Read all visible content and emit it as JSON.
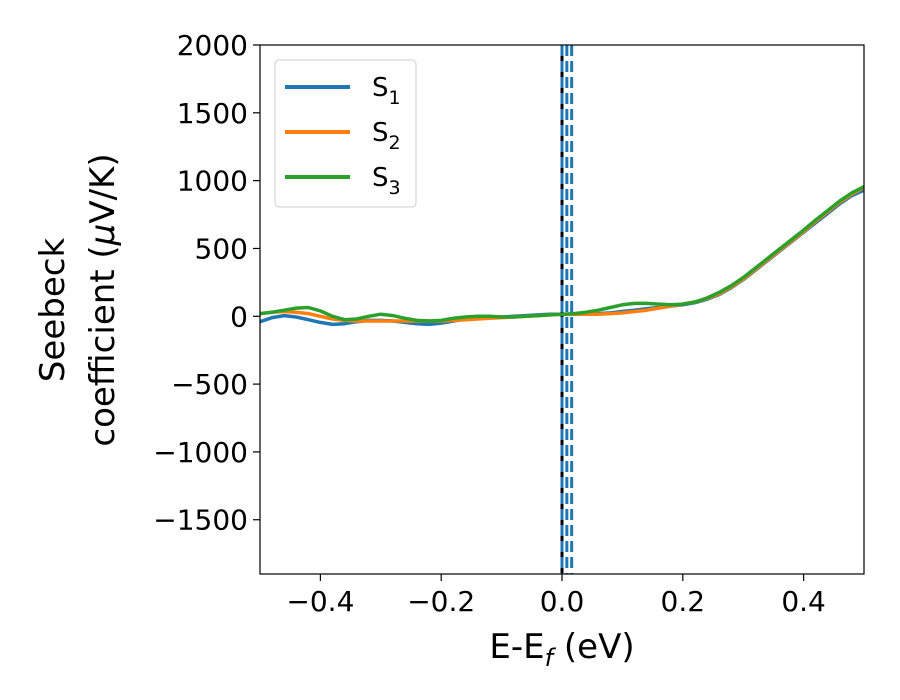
{
  "chart_data": {
    "type": "line",
    "xlabel": "E-E_f (eV)",
    "xlabel_main": "E-E",
    "xlabel_sub": "f",
    "xlabel_tail": " (eV)",
    "ylabel_line1": "Seebeck",
    "ylabel_line2_prefix": "coefficient  (",
    "ylabel_mu": "μ",
    "ylabel_line2_suffix": "V/K)",
    "xlim": [
      -0.5,
      0.5
    ],
    "ylim": [
      -1900,
      2000
    ],
    "xticks": [
      -0.4,
      -0.2,
      0.0,
      0.2,
      0.4
    ],
    "xtick_labels": [
      "−0.4",
      "−0.2",
      "0.0",
      "0.2",
      "0.4"
    ],
    "yticks": [
      -1500,
      -1000,
      -500,
      0,
      500,
      1000,
      1500,
      2000
    ],
    "ytick_labels": [
      "−1500",
      "−1000",
      "−500",
      "0",
      "500",
      "1000",
      "1500",
      "2000"
    ],
    "grid": false,
    "legend_position": "top-left",
    "vertical_lines": [
      {
        "x": 0.0,
        "color": "#000000",
        "style": "solid"
      },
      {
        "x": 0.0,
        "color": "#1f77b4",
        "style": "dashed"
      },
      {
        "x": 0.008,
        "color": "#1f77b4",
        "style": "dashed"
      },
      {
        "x": 0.016,
        "color": "#1f77b4",
        "style": "dashed"
      }
    ],
    "series": [
      {
        "name": "S",
        "subscript": "1",
        "color": "#1f77b4",
        "x": [
          -0.5,
          -0.48,
          -0.46,
          -0.44,
          -0.42,
          -0.4,
          -0.38,
          -0.36,
          -0.34,
          -0.32,
          -0.3,
          -0.28,
          -0.26,
          -0.24,
          -0.22,
          -0.2,
          -0.18,
          -0.16,
          -0.14,
          -0.12,
          -0.1,
          -0.08,
          -0.06,
          -0.04,
          -0.02,
          0.0,
          0.02,
          0.04,
          0.06,
          0.08,
          0.1,
          0.12,
          0.14,
          0.16,
          0.18,
          0.2,
          0.22,
          0.24,
          0.26,
          0.28,
          0.3,
          0.32,
          0.34,
          0.36,
          0.38,
          0.4,
          0.42,
          0.44,
          0.46,
          0.48,
          0.5
        ],
        "y": [
          -40,
          -10,
          5,
          -5,
          -25,
          -45,
          -60,
          -55,
          -40,
          -30,
          -30,
          -35,
          -45,
          -55,
          -60,
          -50,
          -35,
          -20,
          -10,
          -5,
          -5,
          0,
          5,
          10,
          15,
          15,
          15,
          15,
          20,
          25,
          35,
          45,
          55,
          65,
          75,
          85,
          100,
          125,
          160,
          210,
          270,
          340,
          410,
          480,
          550,
          620,
          690,
          760,
          830,
          890,
          930
        ]
      },
      {
        "name": "S",
        "subscript": "2",
        "color": "#ff7f0e",
        "x": [
          -0.5,
          -0.48,
          -0.46,
          -0.44,
          -0.42,
          -0.4,
          -0.38,
          -0.36,
          -0.34,
          -0.32,
          -0.3,
          -0.28,
          -0.26,
          -0.24,
          -0.22,
          -0.2,
          -0.18,
          -0.16,
          -0.14,
          -0.12,
          -0.1,
          -0.08,
          -0.06,
          -0.04,
          -0.02,
          0.0,
          0.02,
          0.04,
          0.06,
          0.08,
          0.1,
          0.12,
          0.14,
          0.16,
          0.18,
          0.2,
          0.22,
          0.24,
          0.26,
          0.28,
          0.3,
          0.32,
          0.34,
          0.36,
          0.38,
          0.4,
          0.42,
          0.44,
          0.46,
          0.48,
          0.5
        ],
        "y": [
          20,
          30,
          35,
          30,
          20,
          0,
          -20,
          -30,
          -35,
          -35,
          -35,
          -35,
          -35,
          -35,
          -35,
          -35,
          -30,
          -25,
          -20,
          -15,
          -10,
          -5,
          0,
          5,
          10,
          15,
          15,
          15,
          15,
          20,
          25,
          35,
          45,
          60,
          75,
          90,
          105,
          130,
          165,
          215,
          275,
          345,
          415,
          485,
          555,
          625,
          700,
          770,
          840,
          900,
          950
        ]
      },
      {
        "name": "S",
        "subscript": "3",
        "color": "#2ca02c",
        "x": [
          -0.5,
          -0.48,
          -0.46,
          -0.44,
          -0.42,
          -0.4,
          -0.38,
          -0.36,
          -0.34,
          -0.32,
          -0.3,
          -0.28,
          -0.26,
          -0.24,
          -0.22,
          -0.2,
          -0.18,
          -0.16,
          -0.14,
          -0.12,
          -0.1,
          -0.08,
          -0.06,
          -0.04,
          -0.02,
          0.0,
          0.02,
          0.04,
          0.06,
          0.08,
          0.1,
          0.12,
          0.14,
          0.16,
          0.18,
          0.2,
          0.22,
          0.24,
          0.26,
          0.28,
          0.3,
          0.32,
          0.34,
          0.36,
          0.38,
          0.4,
          0.42,
          0.44,
          0.46,
          0.48,
          0.5
        ],
        "y": [
          20,
          30,
          45,
          60,
          65,
          40,
          0,
          -25,
          -20,
          0,
          15,
          5,
          -15,
          -30,
          -35,
          -30,
          -15,
          -5,
          0,
          0,
          -5,
          -5,
          0,
          5,
          10,
          15,
          20,
          30,
          45,
          65,
          85,
          95,
          95,
          90,
          85,
          90,
          105,
          135,
          175,
          225,
          285,
          355,
          425,
          495,
          565,
          635,
          710,
          780,
          850,
          910,
          955
        ]
      }
    ]
  }
}
